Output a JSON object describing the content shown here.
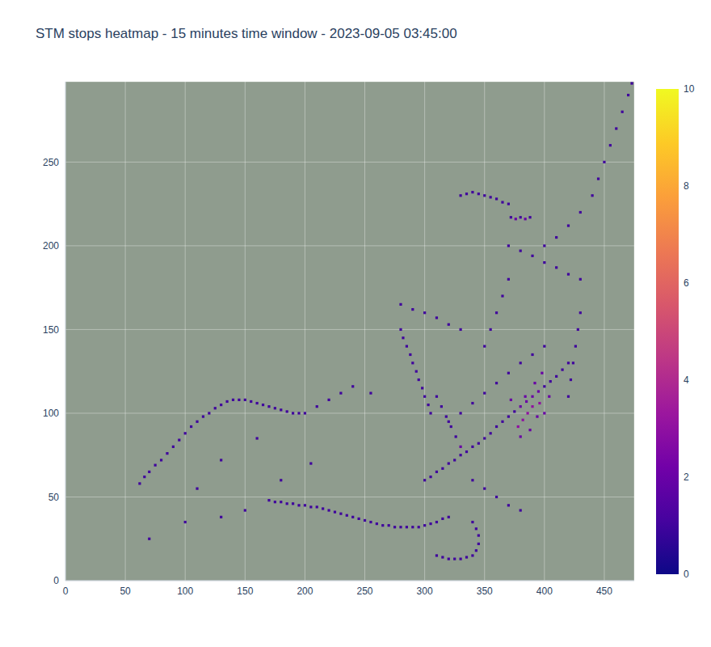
{
  "chart_data": {
    "type": "heatmap",
    "title": "STM stops heatmap - 15 minutes time window - 2023-09-05 03:45:00",
    "xlim": [
      0,
      475
    ],
    "ylim": [
      0,
      298
    ],
    "xticks": [
      0,
      50,
      100,
      150,
      200,
      250,
      300,
      350,
      400,
      450
    ],
    "yticks": [
      0,
      50,
      100,
      150,
      200,
      250
    ],
    "grid": true,
    "colorbar_range": [
      0,
      10
    ],
    "colorbar_ticks": [
      0,
      2,
      4,
      6,
      8,
      10
    ],
    "cells": [
      [
        62,
        58,
        1
      ],
      [
        66,
        62,
        1
      ],
      [
        70,
        65,
        1
      ],
      [
        75,
        69,
        1
      ],
      [
        80,
        72,
        1
      ],
      [
        85,
        76,
        1
      ],
      [
        90,
        80,
        1
      ],
      [
        95,
        84,
        1
      ],
      [
        100,
        88,
        1
      ],
      [
        105,
        92,
        1
      ],
      [
        110,
        95,
        1
      ],
      [
        115,
        98,
        1
      ],
      [
        120,
        100,
        1
      ],
      [
        125,
        103,
        1
      ],
      [
        130,
        105,
        1
      ],
      [
        135,
        107,
        1
      ],
      [
        140,
        108,
        1
      ],
      [
        145,
        108,
        1
      ],
      [
        150,
        108,
        1
      ],
      [
        155,
        107,
        1
      ],
      [
        160,
        106,
        1
      ],
      [
        165,
        105,
        1
      ],
      [
        170,
        104,
        1
      ],
      [
        175,
        103,
        1
      ],
      [
        180,
        102,
        1
      ],
      [
        185,
        101,
        1
      ],
      [
        190,
        100,
        1
      ],
      [
        195,
        100,
        1
      ],
      [
        200,
        100,
        1
      ],
      [
        210,
        104,
        1
      ],
      [
        220,
        108,
        1
      ],
      [
        230,
        112,
        1
      ],
      [
        240,
        116,
        1
      ],
      [
        255,
        112,
        1
      ],
      [
        170,
        48,
        1
      ],
      [
        175,
        47,
        1
      ],
      [
        180,
        47,
        1
      ],
      [
        185,
        46,
        1
      ],
      [
        190,
        46,
        1
      ],
      [
        195,
        45,
        1
      ],
      [
        200,
        45,
        1
      ],
      [
        205,
        44,
        1
      ],
      [
        210,
        44,
        1
      ],
      [
        215,
        43,
        1
      ],
      [
        220,
        42,
        1
      ],
      [
        225,
        41,
        1
      ],
      [
        230,
        40,
        1
      ],
      [
        235,
        39,
        1
      ],
      [
        240,
        38,
        1
      ],
      [
        245,
        37,
        1
      ],
      [
        250,
        36,
        1
      ],
      [
        255,
        35,
        1
      ],
      [
        260,
        34,
        1
      ],
      [
        265,
        33,
        1
      ],
      [
        270,
        33,
        1
      ],
      [
        275,
        32,
        1
      ],
      [
        280,
        32,
        1
      ],
      [
        285,
        32,
        1
      ],
      [
        290,
        32,
        1
      ],
      [
        295,
        32,
        1
      ],
      [
        300,
        33,
        1
      ],
      [
        305,
        34,
        1
      ],
      [
        310,
        35,
        1
      ],
      [
        315,
        37,
        1
      ],
      [
        320,
        38,
        1
      ],
      [
        310,
        15,
        1
      ],
      [
        315,
        14,
        1
      ],
      [
        320,
        13,
        1
      ],
      [
        325,
        13,
        1
      ],
      [
        330,
        13,
        1
      ],
      [
        335,
        14,
        1
      ],
      [
        340,
        15,
        1
      ],
      [
        343,
        18,
        1
      ],
      [
        345,
        22,
        1
      ],
      [
        345,
        27,
        1
      ],
      [
        343,
        31,
        1
      ],
      [
        340,
        35,
        1
      ],
      [
        70,
        25,
        1
      ],
      [
        100,
        35,
        1
      ],
      [
        130,
        38,
        1
      ],
      [
        150,
        42,
        1
      ],
      [
        110,
        55,
        1
      ],
      [
        160,
        85,
        1
      ],
      [
        180,
        60,
        1
      ],
      [
        130,
        72,
        1
      ],
      [
        205,
        70,
        1
      ],
      [
        280,
        150,
        1
      ],
      [
        282,
        145,
        1
      ],
      [
        285,
        140,
        1
      ],
      [
        288,
        135,
        1
      ],
      [
        290,
        130,
        1
      ],
      [
        293,
        125,
        1
      ],
      [
        295,
        120,
        1
      ],
      [
        298,
        115,
        1
      ],
      [
        300,
        110,
        1
      ],
      [
        303,
        105,
        1
      ],
      [
        305,
        100,
        1
      ],
      [
        310,
        110,
        1
      ],
      [
        314,
        104,
        1
      ],
      [
        318,
        98,
        1
      ],
      [
        322,
        92,
        1
      ],
      [
        326,
        86,
        1
      ],
      [
        330,
        80,
        2
      ],
      [
        300,
        60,
        1
      ],
      [
        305,
        62,
        1
      ],
      [
        310,
        65,
        1
      ],
      [
        315,
        67,
        1
      ],
      [
        320,
        70,
        1
      ],
      [
        325,
        72,
        1
      ],
      [
        330,
        75,
        1
      ],
      [
        335,
        77,
        1
      ],
      [
        340,
        80,
        1
      ],
      [
        345,
        82,
        1
      ],
      [
        350,
        85,
        1
      ],
      [
        355,
        88,
        1
      ],
      [
        360,
        92,
        1
      ],
      [
        365,
        95,
        1
      ],
      [
        370,
        98,
        1
      ],
      [
        375,
        101,
        1
      ],
      [
        380,
        104,
        2
      ],
      [
        385,
        107,
        2
      ],
      [
        390,
        110,
        2
      ],
      [
        395,
        113,
        2
      ],
      [
        400,
        116,
        1
      ],
      [
        405,
        119,
        1
      ],
      [
        410,
        122,
        1
      ],
      [
        415,
        126,
        1
      ],
      [
        420,
        130,
        1
      ],
      [
        320,
        95,
        1
      ],
      [
        330,
        100,
        1
      ],
      [
        340,
        106,
        1
      ],
      [
        350,
        112,
        1
      ],
      [
        360,
        118,
        1
      ],
      [
        370,
        124,
        1
      ],
      [
        380,
        130,
        1
      ],
      [
        390,
        135,
        1
      ],
      [
        400,
        140,
        1
      ],
      [
        378,
        92,
        3
      ],
      [
        382,
        96,
        3
      ],
      [
        386,
        100,
        3
      ],
      [
        390,
        104,
        3
      ],
      [
        394,
        98,
        2
      ],
      [
        388,
        90,
        2
      ],
      [
        384,
        110,
        2
      ],
      [
        392,
        118,
        2
      ],
      [
        396,
        106,
        3
      ],
      [
        400,
        100,
        2
      ],
      [
        380,
        86,
        2
      ],
      [
        372,
        108,
        2
      ],
      [
        398,
        124,
        2
      ],
      [
        404,
        110,
        2
      ],
      [
        420,
        110,
        1
      ],
      [
        422,
        120,
        1
      ],
      [
        424,
        130,
        1
      ],
      [
        426,
        140,
        1
      ],
      [
        428,
        150,
        1
      ],
      [
        430,
        160,
        1
      ],
      [
        280,
        165,
        1
      ],
      [
        290,
        162,
        1
      ],
      [
        300,
        160,
        1
      ],
      [
        310,
        157,
        1
      ],
      [
        320,
        153,
        1
      ],
      [
        330,
        150,
        1
      ],
      [
        370,
        200,
        1
      ],
      [
        380,
        197,
        1
      ],
      [
        390,
        194,
        1
      ],
      [
        400,
        190,
        1
      ],
      [
        410,
        187,
        1
      ],
      [
        420,
        183,
        1
      ],
      [
        430,
        180,
        1
      ],
      [
        400,
        200,
        1
      ],
      [
        410,
        205,
        1
      ],
      [
        420,
        212,
        1
      ],
      [
        430,
        220,
        1
      ],
      [
        440,
        230,
        1
      ],
      [
        445,
        240,
        1
      ],
      [
        450,
        250,
        1
      ],
      [
        455,
        260,
        1
      ],
      [
        460,
        270,
        1
      ],
      [
        465,
        280,
        1
      ],
      [
        470,
        290,
        1
      ],
      [
        473,
        297,
        1
      ],
      [
        372,
        217,
        1
      ],
      [
        376,
        216,
        2
      ],
      [
        380,
        217,
        1
      ],
      [
        384,
        216,
        2
      ],
      [
        388,
        217,
        1
      ],
      [
        330,
        230,
        1
      ],
      [
        335,
        231,
        1
      ],
      [
        340,
        232,
        1
      ],
      [
        345,
        231,
        1
      ],
      [
        350,
        230,
        1
      ],
      [
        355,
        229,
        1
      ],
      [
        360,
        228,
        1
      ],
      [
        365,
        226,
        1
      ],
      [
        370,
        225,
        1
      ],
      [
        350,
        140,
        1
      ],
      [
        355,
        150,
        1
      ],
      [
        360,
        160,
        1
      ],
      [
        365,
        170,
        1
      ],
      [
        370,
        180,
        1
      ],
      [
        340,
        60,
        1
      ],
      [
        350,
        55,
        1
      ],
      [
        360,
        50,
        1
      ],
      [
        370,
        45,
        1
      ],
      [
        380,
        42,
        1
      ]
    ]
  }
}
